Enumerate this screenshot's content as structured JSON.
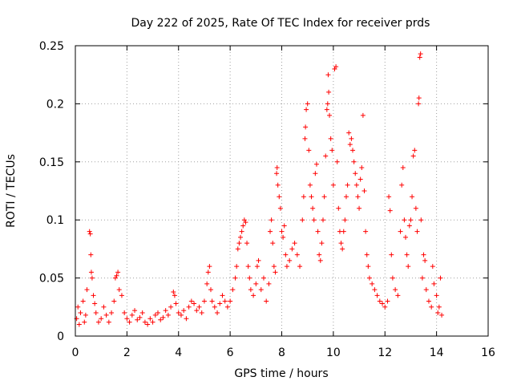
{
  "chart_data": {
    "type": "scatter",
    "title": "Day 222 of 2025, Rate Of TEC Index for receiver prds",
    "xlabel": "GPS time / hours",
    "ylabel": "ROTI / TECUs",
    "xlim": [
      0,
      16
    ],
    "ylim": [
      0,
      0.25
    ],
    "xticks": [
      0,
      2,
      4,
      6,
      8,
      10,
      12,
      14,
      16
    ],
    "xtick_labels": [
      "0",
      "2",
      "4",
      "6",
      "8",
      "10",
      "12",
      "14",
      "16"
    ],
    "yticks": [
      0,
      0.05,
      0.1,
      0.15,
      0.2,
      0.25
    ],
    "ytick_labels": [
      "0",
      "0.05",
      "0.1",
      "0.15",
      "0.2",
      "0.25"
    ],
    "grid": true,
    "marker": "plus",
    "color": "#ff0000",
    "series": [
      {
        "name": "ROTI",
        "points": [
          [
            0.05,
            0.015
          ],
          [
            0.1,
            0.025
          ],
          [
            0.15,
            0.01
          ],
          [
            0.2,
            0.02
          ],
          [
            0.3,
            0.03
          ],
          [
            0.35,
            0.012
          ],
          [
            0.4,
            0.018
          ],
          [
            0.45,
            0.04
          ],
          [
            0.55,
            0.09
          ],
          [
            0.58,
            0.088
          ],
          [
            0.6,
            0.07
          ],
          [
            0.62,
            0.055
          ],
          [
            0.65,
            0.05
          ],
          [
            0.7,
            0.035
          ],
          [
            0.75,
            0.028
          ],
          [
            0.8,
            0.02
          ],
          [
            0.9,
            0.012
          ],
          [
            1.0,
            0.015
          ],
          [
            1.1,
            0.025
          ],
          [
            1.2,
            0.018
          ],
          [
            1.3,
            0.012
          ],
          [
            1.4,
            0.02
          ],
          [
            1.5,
            0.03
          ],
          [
            1.55,
            0.05
          ],
          [
            1.6,
            0.052
          ],
          [
            1.65,
            0.055
          ],
          [
            1.7,
            0.04
          ],
          [
            1.8,
            0.035
          ],
          [
            1.9,
            0.02
          ],
          [
            2.0,
            0.015
          ],
          [
            2.1,
            0.012
          ],
          [
            2.2,
            0.018
          ],
          [
            2.3,
            0.022
          ],
          [
            2.4,
            0.014
          ],
          [
            2.5,
            0.016
          ],
          [
            2.6,
            0.02
          ],
          [
            2.7,
            0.012
          ],
          [
            2.8,
            0.01
          ],
          [
            2.9,
            0.015
          ],
          [
            3.0,
            0.012
          ],
          [
            3.1,
            0.018
          ],
          [
            3.2,
            0.02
          ],
          [
            3.3,
            0.014
          ],
          [
            3.4,
            0.016
          ],
          [
            3.5,
            0.022
          ],
          [
            3.6,
            0.018
          ],
          [
            3.7,
            0.025
          ],
          [
            3.8,
            0.038
          ],
          [
            3.85,
            0.035
          ],
          [
            3.9,
            0.028
          ],
          [
            4.0,
            0.02
          ],
          [
            4.1,
            0.018
          ],
          [
            4.2,
            0.022
          ],
          [
            4.3,
            0.015
          ],
          [
            4.4,
            0.025
          ],
          [
            4.5,
            0.03
          ],
          [
            4.6,
            0.028
          ],
          [
            4.7,
            0.022
          ],
          [
            4.8,
            0.025
          ],
          [
            4.9,
            0.02
          ],
          [
            5.0,
            0.03
          ],
          [
            5.1,
            0.045
          ],
          [
            5.15,
            0.055
          ],
          [
            5.2,
            0.06
          ],
          [
            5.25,
            0.04
          ],
          [
            5.3,
            0.03
          ],
          [
            5.4,
            0.025
          ],
          [
            5.5,
            0.02
          ],
          [
            5.6,
            0.028
          ],
          [
            5.7,
            0.035
          ],
          [
            5.8,
            0.03
          ],
          [
            5.9,
            0.025
          ],
          [
            6.0,
            0.03
          ],
          [
            6.1,
            0.04
          ],
          [
            6.2,
            0.05
          ],
          [
            6.25,
            0.06
          ],
          [
            6.3,
            0.075
          ],
          [
            6.35,
            0.08
          ],
          [
            6.4,
            0.085
          ],
          [
            6.45,
            0.09
          ],
          [
            6.5,
            0.095
          ],
          [
            6.55,
            0.1
          ],
          [
            6.6,
            0.098
          ],
          [
            6.65,
            0.08
          ],
          [
            6.7,
            0.06
          ],
          [
            6.75,
            0.05
          ],
          [
            6.8,
            0.04
          ],
          [
            6.9,
            0.035
          ],
          [
            7.0,
            0.045
          ],
          [
            7.05,
            0.06
          ],
          [
            7.1,
            0.065
          ],
          [
            7.2,
            0.04
          ],
          [
            7.3,
            0.05
          ],
          [
            7.4,
            0.03
          ],
          [
            7.5,
            0.045
          ],
          [
            7.55,
            0.09
          ],
          [
            7.6,
            0.1
          ],
          [
            7.65,
            0.08
          ],
          [
            7.7,
            0.06
          ],
          [
            7.75,
            0.055
          ],
          [
            7.8,
            0.14
          ],
          [
            7.82,
            0.145
          ],
          [
            7.85,
            0.13
          ],
          [
            7.9,
            0.12
          ],
          [
            7.95,
            0.11
          ],
          [
            8.0,
            0.09
          ],
          [
            8.05,
            0.085
          ],
          [
            8.1,
            0.095
          ],
          [
            8.15,
            0.07
          ],
          [
            8.2,
            0.06
          ],
          [
            8.3,
            0.065
          ],
          [
            8.4,
            0.075
          ],
          [
            8.5,
            0.08
          ],
          [
            8.6,
            0.07
          ],
          [
            8.7,
            0.06
          ],
          [
            8.8,
            0.1
          ],
          [
            8.85,
            0.12
          ],
          [
            8.9,
            0.17
          ],
          [
            8.92,
            0.18
          ],
          [
            8.95,
            0.195
          ],
          [
            9.0,
            0.2
          ],
          [
            9.05,
            0.16
          ],
          [
            9.1,
            0.13
          ],
          [
            9.15,
            0.12
          ],
          [
            9.2,
            0.11
          ],
          [
            9.25,
            0.1
          ],
          [
            9.3,
            0.14
          ],
          [
            9.35,
            0.148
          ],
          [
            9.4,
            0.09
          ],
          [
            9.45,
            0.07
          ],
          [
            9.5,
            0.065
          ],
          [
            9.55,
            0.08
          ],
          [
            9.6,
            0.1
          ],
          [
            9.65,
            0.12
          ],
          [
            9.7,
            0.155
          ],
          [
            9.75,
            0.195
          ],
          [
            9.78,
            0.2
          ],
          [
            9.8,
            0.225
          ],
          [
            9.82,
            0.21
          ],
          [
            9.85,
            0.19
          ],
          [
            9.9,
            0.17
          ],
          [
            9.95,
            0.16
          ],
          [
            10.0,
            0.13
          ],
          [
            10.05,
            0.23
          ],
          [
            10.1,
            0.232
          ],
          [
            10.15,
            0.15
          ],
          [
            10.2,
            0.11
          ],
          [
            10.25,
            0.09
          ],
          [
            10.3,
            0.08
          ],
          [
            10.35,
            0.075
          ],
          [
            10.4,
            0.09
          ],
          [
            10.45,
            0.1
          ],
          [
            10.5,
            0.12
          ],
          [
            10.55,
            0.13
          ],
          [
            10.6,
            0.175
          ],
          [
            10.65,
            0.165
          ],
          [
            10.7,
            0.17
          ],
          [
            10.75,
            0.16
          ],
          [
            10.8,
            0.15
          ],
          [
            10.85,
            0.14
          ],
          [
            10.9,
            0.13
          ],
          [
            10.95,
            0.12
          ],
          [
            11.0,
            0.11
          ],
          [
            11.05,
            0.135
          ],
          [
            11.1,
            0.145
          ],
          [
            11.15,
            0.19
          ],
          [
            11.2,
            0.125
          ],
          [
            11.25,
            0.09
          ],
          [
            11.3,
            0.07
          ],
          [
            11.35,
            0.06
          ],
          [
            11.4,
            0.05
          ],
          [
            11.5,
            0.045
          ],
          [
            11.6,
            0.04
          ],
          [
            11.7,
            0.035
          ],
          [
            11.8,
            0.03
          ],
          [
            11.9,
            0.028
          ],
          [
            12.0,
            0.025
          ],
          [
            12.1,
            0.03
          ],
          [
            12.15,
            0.12
          ],
          [
            12.2,
            0.108
          ],
          [
            12.25,
            0.07
          ],
          [
            12.3,
            0.05
          ],
          [
            12.4,
            0.04
          ],
          [
            12.5,
            0.035
          ],
          [
            12.6,
            0.09
          ],
          [
            12.65,
            0.13
          ],
          [
            12.7,
            0.145
          ],
          [
            12.75,
            0.1
          ],
          [
            12.8,
            0.085
          ],
          [
            12.85,
            0.07
          ],
          [
            12.9,
            0.06
          ],
          [
            12.95,
            0.095
          ],
          [
            13.0,
            0.1
          ],
          [
            13.05,
            0.12
          ],
          [
            13.1,
            0.155
          ],
          [
            13.15,
            0.16
          ],
          [
            13.2,
            0.11
          ],
          [
            13.25,
            0.09
          ],
          [
            13.3,
            0.2
          ],
          [
            13.32,
            0.205
          ],
          [
            13.35,
            0.24
          ],
          [
            13.38,
            0.243
          ],
          [
            13.4,
            0.1
          ],
          [
            13.45,
            0.05
          ],
          [
            13.5,
            0.07
          ],
          [
            13.55,
            0.065
          ],
          [
            13.6,
            0.04
          ],
          [
            13.7,
            0.03
          ],
          [
            13.8,
            0.025
          ],
          [
            13.85,
            0.06
          ],
          [
            13.9,
            0.045
          ],
          [
            14.0,
            0.035
          ],
          [
            14.05,
            0.02
          ],
          [
            14.1,
            0.025
          ],
          [
            14.15,
            0.05
          ],
          [
            14.2,
            0.018
          ]
        ]
      }
    ]
  }
}
